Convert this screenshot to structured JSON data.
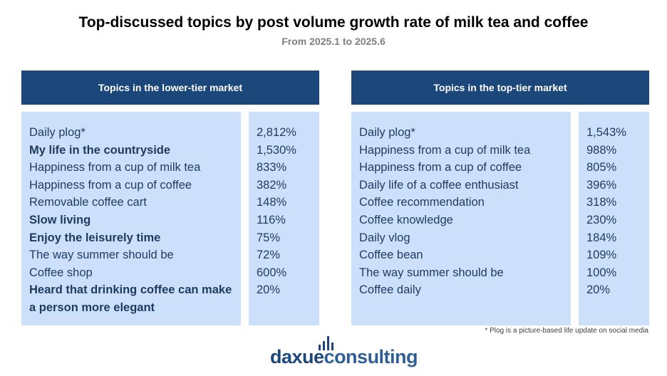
{
  "title": "Top-discussed topics by post volume growth rate of milk tea and coffee",
  "subtitle": "From 2025.1 to 2025.6",
  "chart_data": {
    "type": "table",
    "tables": [
      {
        "header": "Topics in the lower-tier market",
        "rows": [
          {
            "topic": "Daily plog*",
            "growth": "2,812%",
            "bold": false
          },
          {
            "topic": "My life in the countryside",
            "growth": "1,530%",
            "bold": true
          },
          {
            "topic": "Happiness from a cup of milk tea",
            "growth": "833%",
            "bold": false
          },
          {
            "topic": "Happiness from a cup of coffee",
            "growth": "382%",
            "bold": false
          },
          {
            "topic": "Removable coffee cart",
            "growth": "148%",
            "bold": false
          },
          {
            "topic": "Slow living",
            "growth": "116%",
            "bold": true
          },
          {
            "topic": "Enjoy the leisurely time",
            "growth": "75%",
            "bold": true
          },
          {
            "topic": "The way summer should be",
            "growth": "72%",
            "bold": false
          },
          {
            "topic": "Coffee shop",
            "growth": "600%",
            "bold": false
          },
          {
            "topic": "Heard that drinking coffee can make a person more elegant",
            "growth": "20%",
            "bold": true
          }
        ]
      },
      {
        "header": "Topics in the top-tier market",
        "rows": [
          {
            "topic": "Daily plog*",
            "growth": "1,543%",
            "bold": false
          },
          {
            "topic": "Happiness from a cup of milk tea",
            "growth": "988%",
            "bold": false
          },
          {
            "topic": "Happiness from a cup of coffee",
            "growth": "805%",
            "bold": false
          },
          {
            "topic": "Daily life of a coffee enthusiast",
            "growth": "396%",
            "bold": false
          },
          {
            "topic": "Coffee recommendation",
            "growth": "318%",
            "bold": false
          },
          {
            "topic": "Coffee knowledge",
            "growth": "230%",
            "bold": false
          },
          {
            "topic": "Daily vlog",
            "growth": "184%",
            "bold": false
          },
          {
            "topic": "Coffee bean",
            "growth": "109%",
            "bold": false
          },
          {
            "topic": "The way summer should be",
            "growth": "100%",
            "bold": false
          },
          {
            "topic": "Coffee daily",
            "growth": "20%",
            "bold": false
          }
        ]
      }
    ]
  },
  "footnote": "* Plog is a picture-based life update on social media",
  "logo": {
    "part1": "daxue",
    "part2": "consulting"
  },
  "colors": {
    "header_bg": "#1c477a",
    "cell_bg": "#cce0fc",
    "text": "#1f3a5f"
  }
}
